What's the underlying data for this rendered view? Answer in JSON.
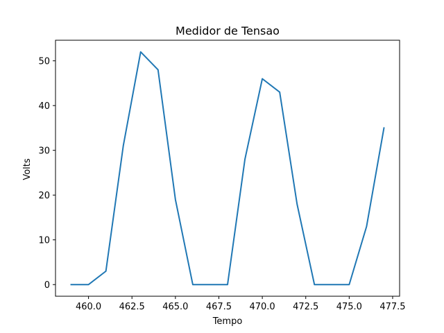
{
  "chart_data": {
    "type": "line",
    "title": "Medidor de Tensao",
    "xlabel": "Tempo",
    "ylabel": "Volts",
    "xlim": [
      458.1,
      477.9
    ],
    "ylim": [
      -2.6,
      54.6
    ],
    "xticks": [
      460.0,
      462.5,
      465.0,
      467.5,
      470.0,
      472.5,
      475.0,
      477.5
    ],
    "xtick_labels": [
      "460.0",
      "462.5",
      "465.0",
      "467.5",
      "470.0",
      "472.5",
      "475.0",
      "477.5"
    ],
    "yticks": [
      0,
      10,
      20,
      30,
      40,
      50
    ],
    "ytick_labels": [
      "0",
      "10",
      "20",
      "30",
      "40",
      "50"
    ],
    "grid": false,
    "series": [
      {
        "color": "#1f77b4",
        "x": [
          459,
          460,
          461,
          462,
          463,
          464,
          465,
          466,
          467,
          468,
          469,
          470,
          471,
          472,
          473,
          474,
          475,
          476,
          477
        ],
        "y": [
          0,
          0,
          3,
          31,
          52,
          48,
          19,
          0,
          0,
          0,
          28,
          46,
          43,
          18,
          0,
          0,
          0,
          13,
          35
        ]
      }
    ]
  }
}
